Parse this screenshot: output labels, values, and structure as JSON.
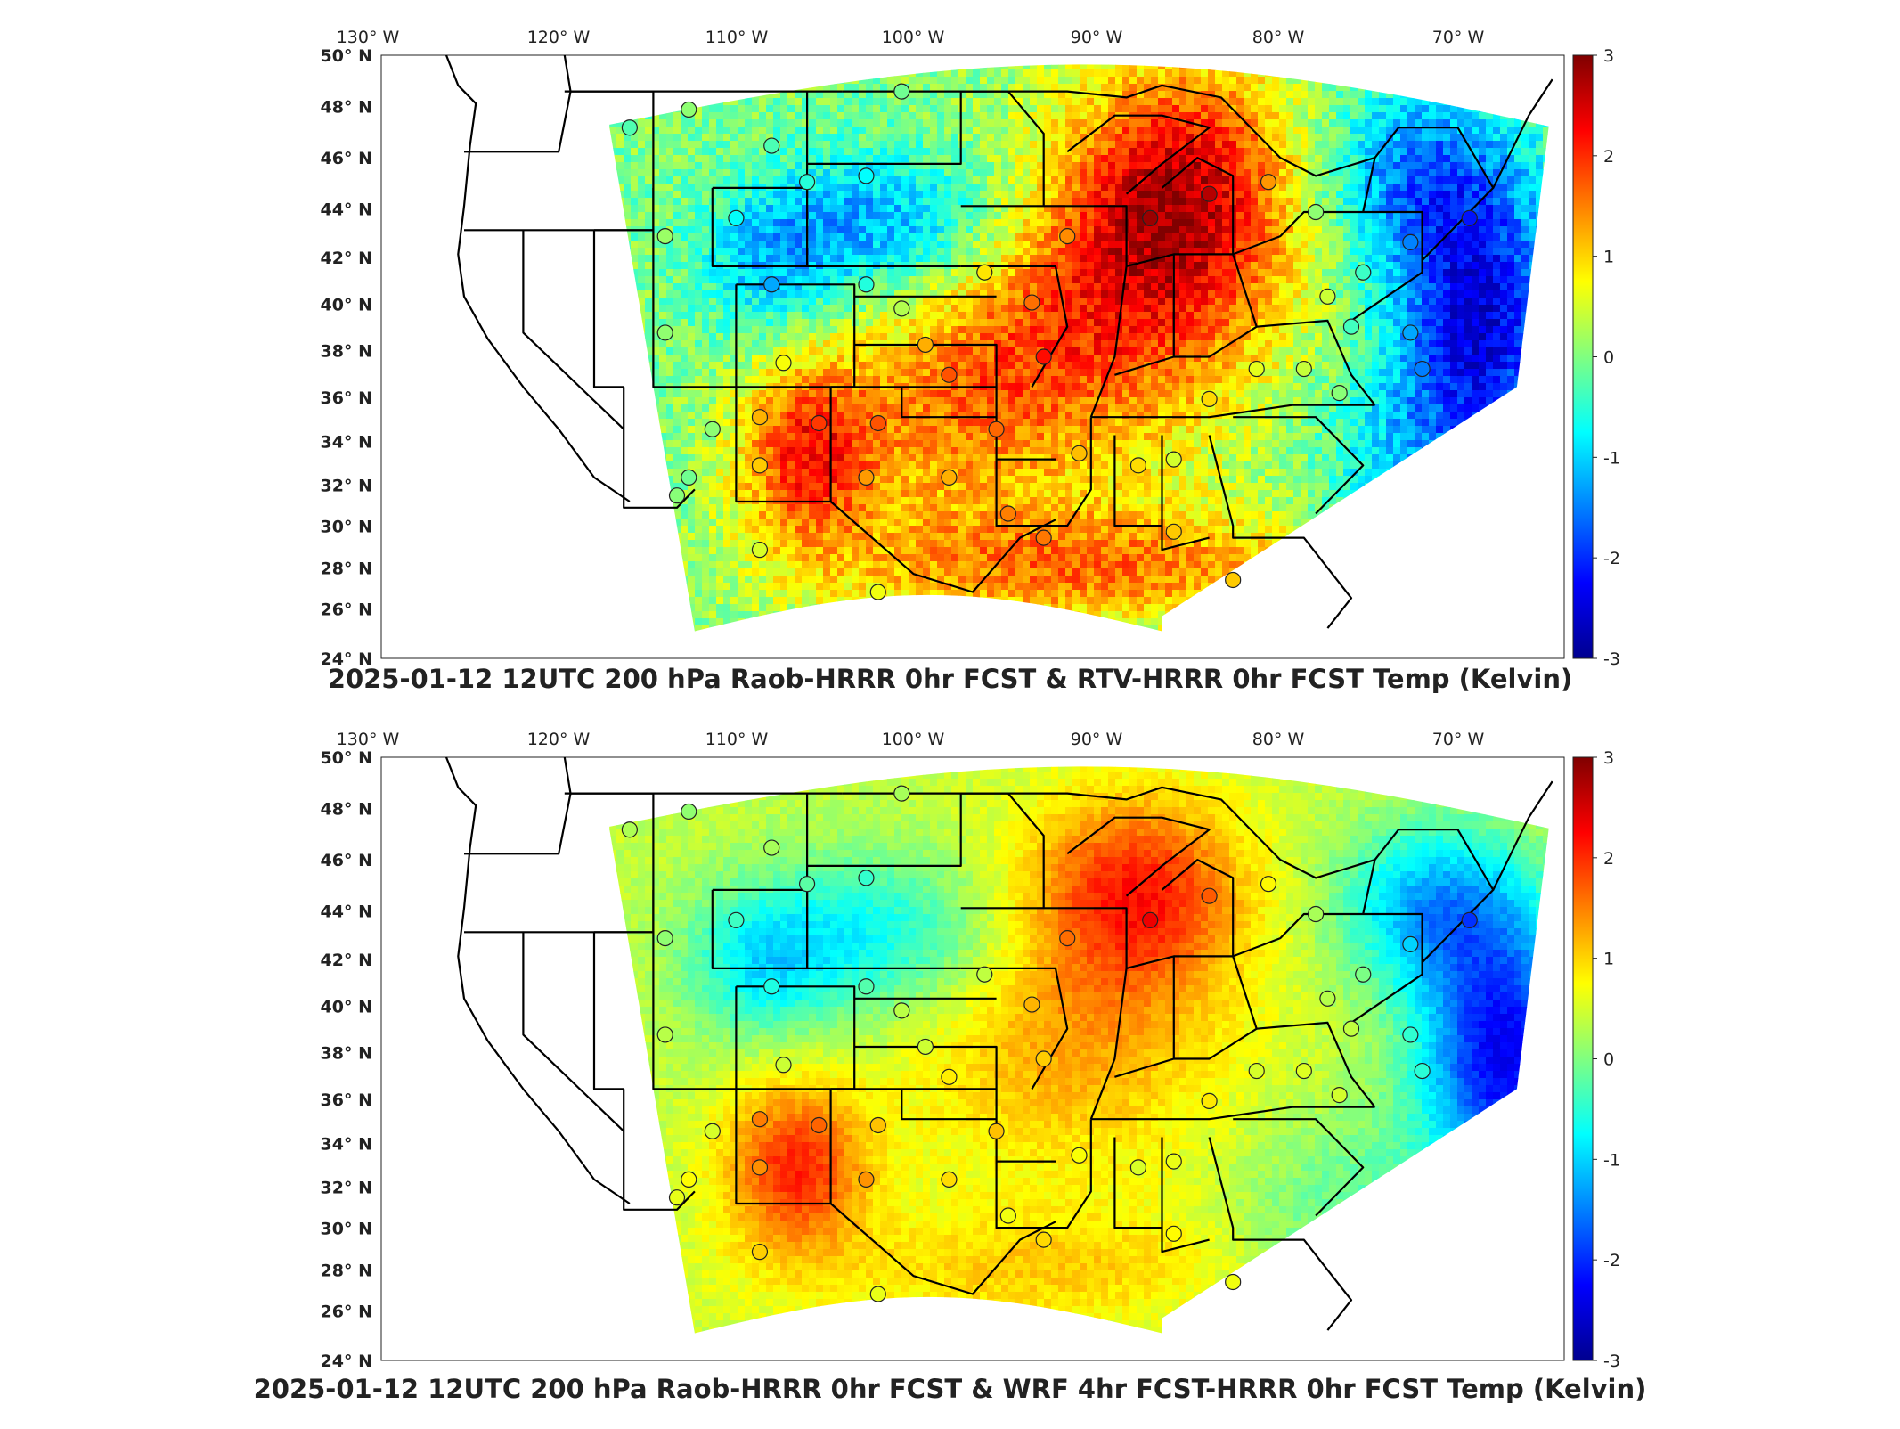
{
  "panels": [
    {
      "title": "2025-01-12 12UTC 200 hPa Raob-HRRR 0hr FCST & RTV-HRRR 0hr FCST Temp (Kelvin)",
      "field": "rtv"
    },
    {
      "title": "2025-01-12 12UTC 200 hPa Raob-HRRR 0hr FCST & WRF 4hr FCST-HRRR 0hr FCST Temp (Kelvin)",
      "field": "wrf"
    }
  ],
  "axes": {
    "lon_ticks": [
      "130",
      "120",
      "110",
      "100",
      "90",
      "80",
      "70"
    ],
    "lon_suffix": "W",
    "lat_ticks": [
      "50",
      "48",
      "46",
      "44",
      "42",
      "40",
      "38",
      "36",
      "34",
      "32",
      "30",
      "28",
      "26",
      "24"
    ],
    "lat_suffix": "N",
    "degree_symbol": "°"
  },
  "colorbar": {
    "ticks": [
      "3",
      "2",
      "1",
      "0",
      "-1",
      "-2",
      "-3"
    ],
    "colormap": "jet",
    "range": [
      -3,
      3
    ]
  },
  "colors": {
    "jet": [
      "#00008f",
      "#0000ff",
      "#0080ff",
      "#00ffff",
      "#80ff80",
      "#ffff00",
      "#ff8000",
      "#ff0000",
      "#800000"
    ],
    "boundary": "#000000"
  },
  "stations_count_label": ""
}
